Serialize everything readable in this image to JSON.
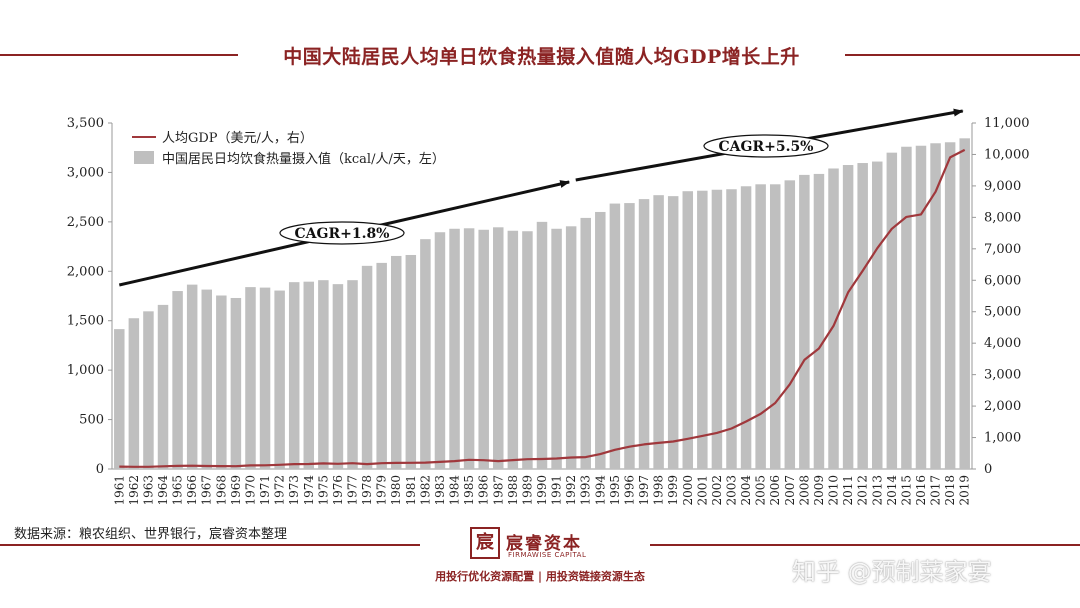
{
  "header": {
    "title": "中国大陆居民人均单日饮食热量摄入值随人均GDP增长上升"
  },
  "chart_data": {
    "type": "bar",
    "title": "中国大陆居民人均单日饮食热量摄入值随人均GDP增长上升",
    "legend": [
      {
        "name": "人均GDP（美元/人，右）",
        "kind": "line",
        "color": "#a0383c"
      },
      {
        "name": "中国居民日均饮食热量摄入值（kcal/人/天，左）",
        "kind": "bar",
        "color": "#bfbfbf"
      }
    ],
    "legend_position": "top-left",
    "grid": false,
    "categories": [
      "1961",
      "1962",
      "1963",
      "1964",
      "1965",
      "1966",
      "1967",
      "1968",
      "1969",
      "1970",
      "1971",
      "1972",
      "1973",
      "1974",
      "1975",
      "1976",
      "1977",
      "1978",
      "1979",
      "1980",
      "1981",
      "1982",
      "1983",
      "1984",
      "1985",
      "1986",
      "1987",
      "1988",
      "1989",
      "1990",
      "1991",
      "1992",
      "1993",
      "1994",
      "1995",
      "1996",
      "1997",
      "1998",
      "1999",
      "2000",
      "2001",
      "2002",
      "2003",
      "2004",
      "2005",
      "2006",
      "2007",
      "2008",
      "2009",
      "2010",
      "2011",
      "2012",
      "2013",
      "2014",
      "2015",
      "2016",
      "2017",
      "2018",
      "2019"
    ],
    "series": [
      {
        "name": "中国居民日均饮食热量摄入值（kcal/人/天，左）",
        "type": "bar",
        "axis": "left",
        "color": "#bfbfbf",
        "values": [
          1415,
          1525,
          1595,
          1660,
          1800,
          1865,
          1815,
          1755,
          1730,
          1840,
          1835,
          1805,
          1890,
          1895,
          1910,
          1870,
          1910,
          2055,
          2085,
          2155,
          2165,
          2325,
          2395,
          2430,
          2435,
          2420,
          2445,
          2410,
          2405,
          2500,
          2430,
          2455,
          2540,
          2600,
          2685,
          2690,
          2730,
          2770,
          2760,
          2810,
          2815,
          2825,
          2830,
          2860,
          2880,
          2880,
          2920,
          2975,
          2985,
          3040,
          3075,
          3095,
          3110,
          3200,
          3260,
          3270,
          3295,
          3305,
          3345
        ]
      },
      {
        "name": "人均GDP（美元/人，右）",
        "type": "line",
        "axis": "right",
        "color": "#a0383c",
        "values": [
          76,
          71,
          70,
          85,
          98,
          104,
          96,
          91,
          90,
          113,
          118,
          132,
          157,
          160,
          178,
          165,
          185,
          156,
          184,
          195,
          197,
          203,
          225,
          250,
          294,
          281,
          251,
          284,
          310,
          318,
          333,
          366,
          377,
          473,
          610,
          709,
          782,
          829,
          873,
          959,
          1053,
          1149,
          1289,
          1509,
          1753,
          2099,
          2694,
          3468,
          3832,
          4550,
          5614,
          6301,
          7020,
          7636,
          8016,
          8094,
          8817,
          9905,
          10144
        ]
      }
    ],
    "y_left": {
      "min": 0,
      "max": 3500,
      "ticks": [
        "0",
        "500",
        "1,000",
        "1,500",
        "2,000",
        "2,500",
        "3,000",
        "3,500"
      ]
    },
    "y_right": {
      "min": 0,
      "max": 11000,
      "ticks": [
        "0",
        "1,000",
        "2,000",
        "3,000",
        "4,000",
        "5,000",
        "6,000",
        "7,000",
        "8,000",
        "9,000",
        "10,000",
        "11,000"
      ]
    },
    "annotations": [
      {
        "text": "CAGR+1.8%",
        "from": "1961",
        "to": "1992",
        "arrow_color": "#111111"
      },
      {
        "text": "CAGR+5.5%",
        "from": "1993",
        "to": "2019",
        "arrow_color": "#111111"
      }
    ]
  },
  "footer": {
    "source": "数据来源：粮农组织、世界银行，宸睿资本整理",
    "logo_mark": "宸",
    "logo_name": "宸睿资本",
    "logo_en": "FIRMAWISE CAPITAL",
    "slogan": "用投行优化资源配置 | 用投资链接资源生态"
  },
  "watermark": "知乎 @预制菜家宴"
}
